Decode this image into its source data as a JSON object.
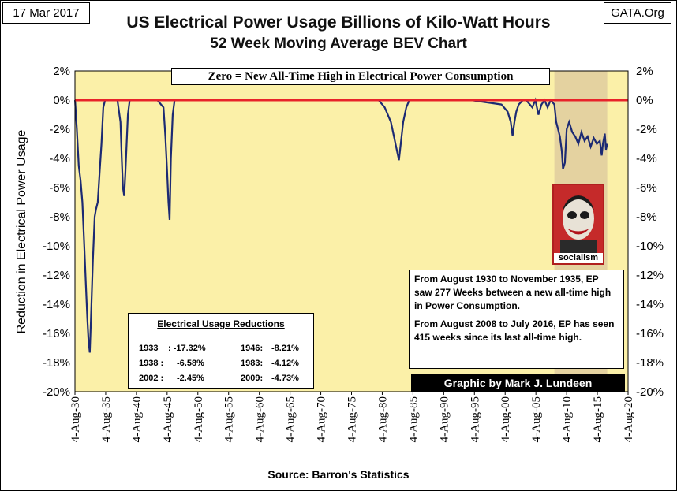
{
  "header": {
    "date": "17 Mar 2017",
    "site": "GATA.Org"
  },
  "chart_data": {
    "type": "line",
    "title": "US Electrical Power Usage Billions of Kilo-Watt Hours",
    "subtitle": "52 Week Moving Average BEV Chart",
    "ylabel": "Reduction in Electrical Power Usage",
    "xlabel": "",
    "ylim": [
      -20,
      2
    ],
    "yticks": [
      2,
      0,
      -2,
      -4,
      -6,
      -8,
      -10,
      -12,
      -14,
      -16,
      -18,
      -20
    ],
    "ytick_labels": [
      "2%",
      "0%",
      "-2%",
      "-4%",
      "-6%",
      "-8%",
      "-10%",
      "-12%",
      "-14%",
      "-16%",
      "-18%",
      "-20%"
    ],
    "xlim": [
      1930.59,
      2020.59
    ],
    "xtick_labels": [
      "4-Aug-30",
      "4-Aug-35",
      "4-Aug-40",
      "4-Aug-45",
      "4-Aug-50",
      "4-Aug-55",
      "4-Aug-60",
      "4-Aug-65",
      "4-Aug-70",
      "4-Aug-75",
      "4-Aug-80",
      "4-Aug-85",
      "4-Aug-90",
      "4-Aug-95",
      "4-Aug-00",
      "4-Aug-05",
      "4-Aug-10",
      "4-Aug-15",
      "4-Aug-20"
    ],
    "grid": false,
    "background": "#fbf0a8",
    "shaded_region": {
      "x": [
        2008.6,
        2017.2
      ],
      "color": "#e4d2a0"
    },
    "reference_line": {
      "y": 0,
      "color": "#e8232a"
    },
    "annotation": "Zero = New All-Time High in Electrical Power Consumption",
    "series": [
      {
        "color": "#1c2a73",
        "x": [
          1930.6,
          1930.9,
          1931.2,
          1931.5,
          1931.8,
          1932.1,
          1932.4,
          1932.6,
          1932.8,
          1933.0,
          1933.2,
          1933.5,
          1933.8,
          1934.0,
          1934.3,
          1934.6,
          1934.9,
          1935.2,
          1935.5,
          1935.8,
          1936.0,
          1936.5,
          1937.0,
          1937.5,
          1938.0,
          1938.2,
          1938.4,
          1938.6,
          1938.8,
          1939.0,
          1939.2,
          1939.5,
          1940.0,
          1941.0,
          1942.0,
          1943.0,
          1944.0,
          1945.0,
          1945.3,
          1945.6,
          1945.8,
          1946.0,
          1946.2,
          1946.5,
          1946.8,
          1947.5,
          1950.0,
          1955.0,
          1960.0,
          1965.0,
          1970.0,
          1975.0,
          1980.0,
          1981.0,
          1982.0,
          1982.5,
          1983.0,
          1983.3,
          1983.6,
          1984.0,
          1984.5,
          1985.0,
          1990.0,
          1995.0,
          2000.0,
          2001.0,
          2001.5,
          2001.8,
          2002.1,
          2002.4,
          2002.8,
          2003.5,
          2004.0,
          2005.0,
          2005.5,
          2006.0,
          2006.5,
          2007.0,
          2007.5,
          2008.0,
          2008.6,
          2008.9,
          2009.2,
          2009.5,
          2009.8,
          2010.0,
          2010.3,
          2010.6,
          2011.0,
          2011.5,
          2012.0,
          2012.5,
          2013.0,
          2013.5,
          2014.0,
          2014.5,
          2015.0,
          2015.5,
          2016.0,
          2016.3,
          2016.5,
          2016.8,
          2017.0,
          2017.2
        ],
        "y": [
          0,
          -2,
          -4.5,
          -5.5,
          -7,
          -10,
          -13,
          -15,
          -16.5,
          -17.32,
          -15,
          -11,
          -8,
          -7.5,
          -7,
          -5,
          -3,
          -0.5,
          0,
          0,
          0,
          0,
          0,
          0,
          -1.5,
          -4,
          -6,
          -6.58,
          -5,
          -3,
          -1,
          0,
          0,
          0,
          0,
          0,
          0,
          -0.5,
          -2.5,
          -5,
          -7,
          -8.21,
          -4,
          -1,
          0,
          0,
          0,
          0,
          0,
          0,
          0,
          0,
          0,
          -0.5,
          -1.5,
          -2.5,
          -3.5,
          -4.12,
          -3,
          -1.5,
          -0.5,
          0,
          0,
          0,
          -0.3,
          -0.8,
          -1.5,
          -2.45,
          -1.5,
          -0.8,
          -0.3,
          0,
          0,
          -0.5,
          0,
          -1,
          -0.3,
          0,
          -0.5,
          0,
          -0.3,
          -1.5,
          -2,
          -2.5,
          -3.5,
          -4.73,
          -4.3,
          -2,
          -1.5,
          -2.2,
          -2.5,
          -3,
          -2.2,
          -2.8,
          -2.5,
          -3.2,
          -2.6,
          -3,
          -2.8,
          -3.8,
          -3,
          -2.3,
          -3.4,
          -3.0
        ]
      }
    ]
  },
  "reductions": {
    "title": "Electrical Usage Reductions",
    "items": [
      {
        "year": "1933",
        "value": ": -17.32%"
      },
      {
        "year": "1946:",
        "value": "-8.21%"
      },
      {
        "year": "1938 :",
        "value": "-6.58%"
      },
      {
        "year": "1983:",
        "value": "-4.12%"
      },
      {
        "year": "2002 :",
        "value": "-2.45%"
      },
      {
        "year": "2009:",
        "value": "-4.73%"
      }
    ]
  },
  "info": {
    "para1": "From August 1930 to November 1935, EP saw 277 Weeks between a new all-time high in Power Consumption.",
    "para2": "From August 2008 to July 2016, EP has seen 415 weeks since its last all-time high."
  },
  "credit": "Graphic by Mark J. Lundeen",
  "source": "Source: Barron's Statistics",
  "photo_caption": "socialism"
}
